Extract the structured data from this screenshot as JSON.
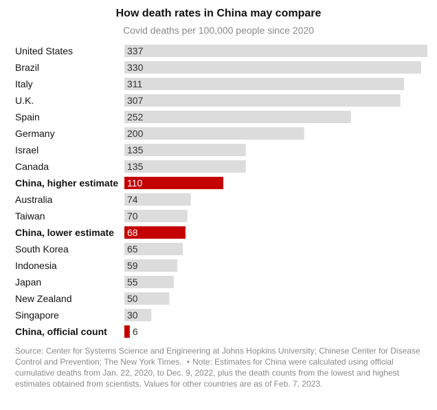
{
  "chart_data": {
    "type": "bar",
    "title": "How death rates in China may compare",
    "subtitle": "Covid deaths per 100,000 people since 2020",
    "categories": [
      "United States",
      "Brazil",
      "Italy",
      "U.K.",
      "Spain",
      "Germany",
      "Israel",
      "Canada",
      "China, higher estimate",
      "Australia",
      "Taiwan",
      "China, lower estimate",
      "South Korea",
      "Indonesia",
      "Japan",
      "New Zealand",
      "Singapore",
      "China, official count"
    ],
    "values": [
      337,
      330,
      311,
      307,
      252,
      200,
      135,
      135,
      110,
      74,
      70,
      68,
      65,
      59,
      55,
      50,
      30,
      6
    ],
    "highlighted": [
      "China, higher estimate",
      "China, lower estimate",
      "China, official count"
    ],
    "orientation": "horizontal",
    "xlim": [
      0,
      337
    ],
    "grid": false,
    "legend": "none",
    "colors": {
      "default_bar": "#dcdcdc",
      "highlight_bar": "#c40000",
      "label_on_default": "#333333",
      "label_on_highlight": "#ffffff"
    }
  },
  "source": {
    "part1": "Source: Center for Systems Science and Engineering at Johns Hopkins University; Chinese Center for Disease Control and Prevention; The New York Times.",
    "separator": "•",
    "part2": "Note: Estimates for China were calculated using official cumulative deaths from Jan. 22, 2020, to Dec. 9, 2022, plus the death counts from the lowest and highest estimates obtained from scientists. Values for other countries are as of Feb. 7, 2023."
  }
}
